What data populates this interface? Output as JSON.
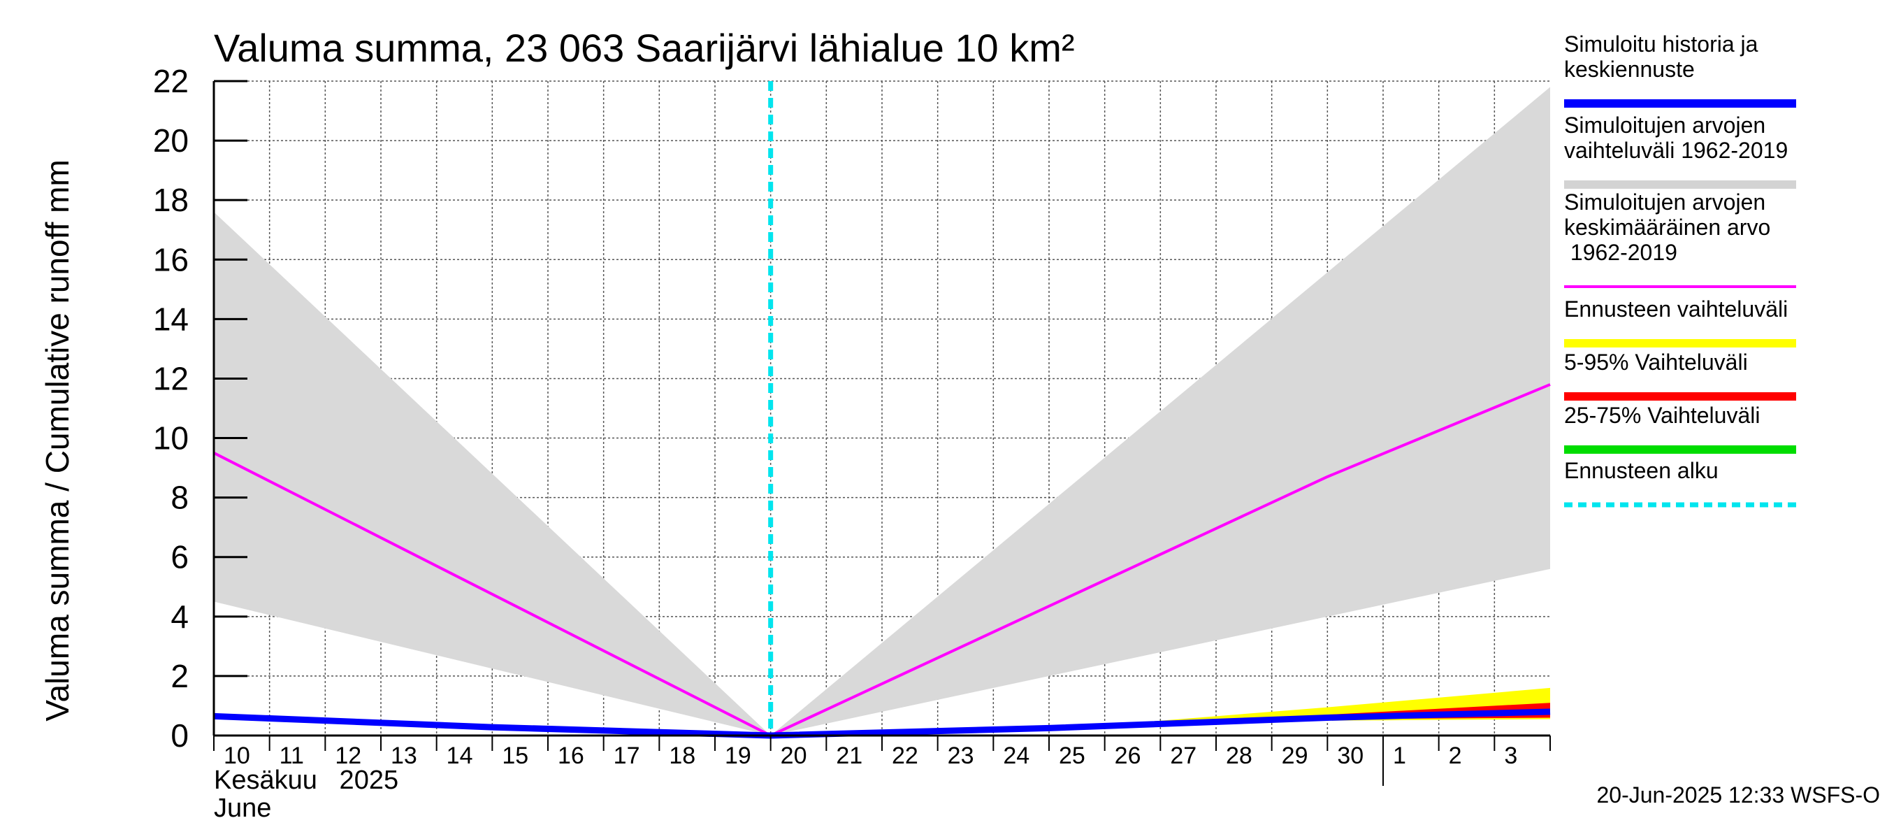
{
  "chart_data": {
    "type": "area",
    "title": "Valuma summa, 23 063 Saarijärvi lähialue 10 km²",
    "ylabel": "Valuma summa / Cumulative runoff     mm",
    "ylim": [
      0,
      22
    ],
    "yticks": [
      "0",
      "2",
      "4",
      "6",
      "8",
      "10",
      "12",
      "14",
      "16",
      "18",
      "20",
      "22"
    ],
    "x_start": "2025-06-10",
    "x_end": "2025-07-04",
    "day_labels": [
      "10",
      "11",
      "12",
      "13",
      "14",
      "15",
      "16",
      "17",
      "18",
      "19",
      "20",
      "21",
      "22",
      "23",
      "24",
      "25",
      "26",
      "27",
      "28",
      "29",
      "30",
      "1",
      "2",
      "3"
    ],
    "month_labels": {
      "fi": "Kesäkuu   2025",
      "en": "June"
    },
    "forecast_start": "2025-06-20",
    "grid": true,
    "series": [
      {
        "name": "Simuloitujen arvojen vaihteluväli 1962-2019",
        "color": "#d9d9d9",
        "dates": [
          "2025-06-10",
          "2025-06-20",
          "2025-07-04"
        ],
        "upper": [
          17.6,
          0.0,
          21.8
        ],
        "lower": [
          4.5,
          0.0,
          5.6
        ]
      },
      {
        "name": "Ennusteen vaihteluväli",
        "color": "#ffff00",
        "dates": [
          "2025-06-20",
          "2025-06-26",
          "2025-06-30",
          "2025-07-04"
        ],
        "upper": [
          0.0,
          0.35,
          0.95,
          1.6
        ],
        "lower": [
          0.0,
          0.3,
          0.5,
          0.55
        ]
      },
      {
        "name": "5-95% Vaihteluväli",
        "color": "#ff0000",
        "dates": [
          "2025-06-20",
          "2025-06-26",
          "2025-06-30",
          "2025-07-04"
        ],
        "upper": [
          0.0,
          0.33,
          0.7,
          1.1
        ],
        "lower": [
          0.0,
          0.3,
          0.55,
          0.6
        ]
      },
      {
        "name": "25-75% Vaihteluväli",
        "color": "#00dd00",
        "dates": [
          "2025-06-20",
          "2025-06-26",
          "2025-06-30",
          "2025-07-04"
        ],
        "upper": [
          0.0,
          0.32,
          0.62,
          0.85
        ],
        "lower": [
          0.0,
          0.31,
          0.58,
          0.75
        ]
      },
      {
        "name": "Simuloitujen arvojen keskimääräinen arvo 1962-2019",
        "color": "#ff00ff",
        "dates": [
          "2025-06-10",
          "2025-06-20",
          "2025-06-30",
          "2025-07-04"
        ],
        "values": [
          9.5,
          0.0,
          8.7,
          11.8
        ]
      },
      {
        "name": "Simuloitu historia ja keskiennuste",
        "color": "#0000ff",
        "dates": [
          "2025-06-10",
          "2025-06-15",
          "2025-06-20",
          "2025-06-25",
          "2025-06-30",
          "2025-07-04"
        ],
        "values": [
          0.65,
          0.28,
          0.0,
          0.25,
          0.6,
          0.8
        ]
      }
    ]
  },
  "legend": [
    {
      "label": "Simuloitu historia ja keskiennuste",
      "color": "#0000ff",
      "style": "solid"
    },
    {
      "label": "Simuloitujen arvojen vaihteluväli 1962-2019",
      "color": "#d3d3d3",
      "style": "solid"
    },
    {
      "label": "Simuloitujen arvojen keskimääräinen arvo 1962-2019",
      "color": "#ff00ff",
      "style": "thin"
    },
    {
      "label": "Ennusteen vaihteluväli",
      "color": "#ffff00",
      "style": "solid"
    },
    {
      "label": "5-95% Vaihteluväli",
      "color": "#ff0000",
      "style": "solid"
    },
    {
      "label": "25-75% Vaihteluväli",
      "color": "#00dd00",
      "style": "solid"
    },
    {
      "label": "Ennusteen alku",
      "color": "#00e5ee",
      "style": "dashed"
    }
  ],
  "footer": "20-Jun-2025 12:33 WSFS-O"
}
